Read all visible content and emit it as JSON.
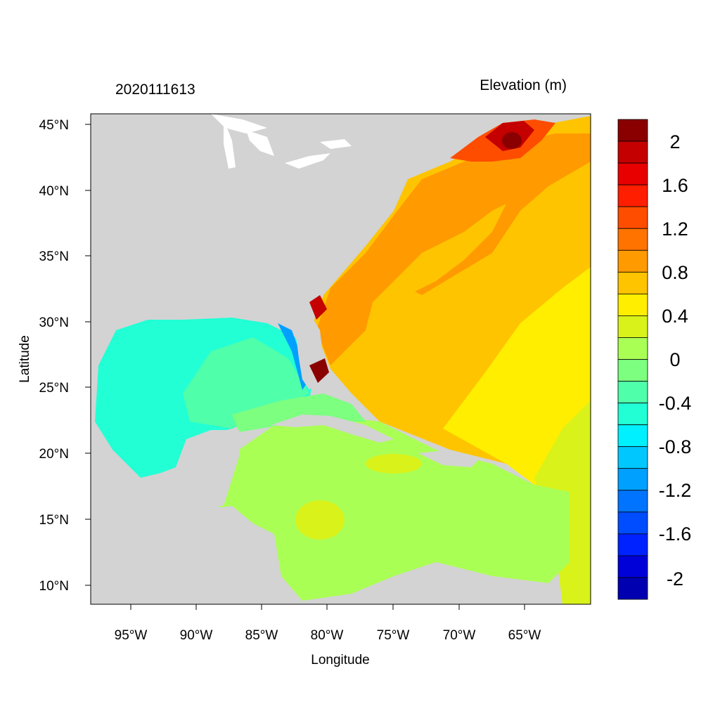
{
  "header": {
    "timestamp": "2020111613",
    "variable_label": "Elevation (m)"
  },
  "axes": {
    "xlabel": "Longitude",
    "ylabel": "Latitude",
    "xticks": [
      "95°W",
      "90°W",
      "85°W",
      "80°W",
      "75°W",
      "70°W",
      "65°W"
    ],
    "yticks": [
      "45°N",
      "40°N",
      "35°N",
      "30°N",
      "25°N",
      "20°N",
      "15°N",
      "10°N"
    ]
  },
  "colorbar": {
    "labels": [
      "2",
      "1.6",
      "1.2",
      "0.8",
      "0.4",
      "0",
      "-0.4",
      "-0.8",
      "-1.2",
      "-1.6",
      "-2"
    ],
    "colors": [
      "#8a0000",
      "#c40000",
      "#e80000",
      "#ff1e00",
      "#ff4d00",
      "#ff7300",
      "#ff9a00",
      "#ffc400",
      "#ffee00",
      "#d9f21a",
      "#aaff55",
      "#7dff80",
      "#50ffaa",
      "#22ffd5",
      "#00f0ff",
      "#00c8ff",
      "#00a0ff",
      "#0073ff",
      "#004cff",
      "#0022ff",
      "#0000d8",
      "#0000b0"
    ]
  },
  "colors": {
    "land": "#d3d3d3",
    "ocean_white": "#ffffff"
  }
}
